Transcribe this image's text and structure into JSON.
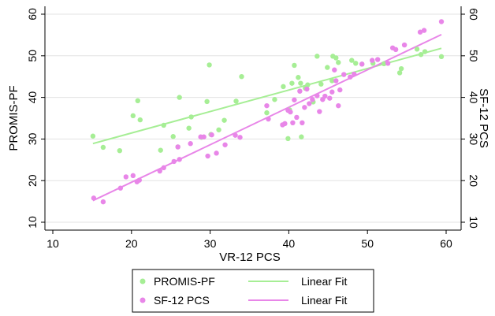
{
  "chart_data": {
    "type": "scatter",
    "title": "",
    "xlabel": "VR-12 PCS",
    "ylabel_left": "PROMIS-PF",
    "ylabel_right": "SF-12 PCS",
    "xlim": [
      10,
      60
    ],
    "ylim": [
      10,
      60
    ],
    "xticks": [
      10,
      20,
      30,
      40,
      50,
      60
    ],
    "yticks": [
      10,
      20,
      30,
      40,
      50,
      60
    ],
    "grid": true,
    "legend_position": "bottom",
    "series": [
      {
        "name": "PROMIS-PF",
        "color": "#a6ee95",
        "points": [
          [
            15.1,
            30.7
          ],
          [
            16.4,
            28.0
          ],
          [
            18.5,
            27.2
          ],
          [
            20.2,
            35.6
          ],
          [
            20.8,
            39.2
          ],
          [
            21.1,
            34.6
          ],
          [
            23.7,
            27.3
          ],
          [
            24.1,
            33.3
          ],
          [
            25.3,
            30.6
          ],
          [
            25.9,
            28.1
          ],
          [
            26.1,
            40.0
          ],
          [
            27.3,
            32.6
          ],
          [
            27.6,
            35.3
          ],
          [
            28.9,
            30.4
          ],
          [
            29.6,
            39.0
          ],
          [
            29.9,
            47.8
          ],
          [
            30.1,
            31.1
          ],
          [
            31.1,
            32.2
          ],
          [
            31.8,
            34.5
          ],
          [
            33.3,
            39.1
          ],
          [
            34.0,
            45.0
          ],
          [
            37.2,
            36.3
          ],
          [
            38.2,
            39.5
          ],
          [
            39.3,
            42.6
          ],
          [
            39.9,
            30.1
          ],
          [
            40.1,
            37.0
          ],
          [
            40.4,
            43.4
          ],
          [
            40.7,
            47.7
          ],
          [
            41.2,
            44.8
          ],
          [
            41.5,
            43.4
          ],
          [
            41.6,
            30.5
          ],
          [
            42.1,
            42.2
          ],
          [
            42.4,
            43.0
          ],
          [
            43.1,
            38.9
          ],
          [
            43.6,
            49.9
          ],
          [
            44.1,
            43.2
          ],
          [
            44.9,
            47.2
          ],
          [
            45.5,
            44.0
          ],
          [
            45.6,
            49.9
          ],
          [
            46.0,
            49.5
          ],
          [
            46.3,
            48.4
          ],
          [
            48.0,
            48.9
          ],
          [
            48.5,
            48.2
          ],
          [
            49.3,
            48.0
          ],
          [
            50.7,
            48.2
          ],
          [
            52.1,
            48.1
          ],
          [
            54.1,
            45.9
          ],
          [
            54.3,
            46.9
          ],
          [
            56.3,
            51.6
          ],
          [
            56.8,
            50.3
          ],
          [
            57.3,
            51.0
          ],
          [
            59.4,
            49.8
          ]
        ],
        "fit_line": [
          [
            15.1,
            28.9
          ],
          [
            59.4,
            51.8
          ]
        ]
      },
      {
        "name": "SF-12 PCS",
        "color": "#e886e8",
        "points": [
          [
            15.2,
            15.8
          ],
          [
            16.4,
            14.9
          ],
          [
            18.6,
            18.2
          ],
          [
            19.3,
            20.9
          ],
          [
            20.2,
            21.2
          ],
          [
            20.7,
            19.7
          ],
          [
            21.0,
            20.1
          ],
          [
            23.6,
            22.3
          ],
          [
            24.1,
            23.1
          ],
          [
            25.4,
            24.6
          ],
          [
            25.9,
            28.1
          ],
          [
            26.1,
            25.1
          ],
          [
            27.5,
            28.9
          ],
          [
            28.8,
            30.5
          ],
          [
            29.2,
            30.5
          ],
          [
            29.7,
            25.9
          ],
          [
            30.2,
            31.0
          ],
          [
            30.8,
            26.6
          ],
          [
            31.9,
            28.6
          ],
          [
            33.2,
            30.9
          ],
          [
            33.8,
            30.4
          ],
          [
            37.2,
            38.0
          ],
          [
            37.4,
            34.8
          ],
          [
            39.2,
            33.4
          ],
          [
            39.5,
            33.7
          ],
          [
            39.9,
            36.9
          ],
          [
            40.2,
            36.5
          ],
          [
            40.5,
            33.9
          ],
          [
            40.7,
            39.4
          ],
          [
            41.0,
            35.2
          ],
          [
            41.4,
            41.5
          ],
          [
            41.7,
            33.9
          ],
          [
            42.0,
            37.6
          ],
          [
            42.3,
            42.0
          ],
          [
            42.6,
            38.5
          ],
          [
            43.0,
            39.5
          ],
          [
            43.6,
            40.4
          ],
          [
            43.9,
            36.6
          ],
          [
            44.3,
            39.5
          ],
          [
            44.6,
            40.3
          ],
          [
            45.2,
            39.8
          ],
          [
            45.5,
            41.3
          ],
          [
            45.8,
            46.6
          ],
          [
            46.0,
            44.0
          ],
          [
            46.3,
            38.0
          ],
          [
            46.5,
            41.8
          ],
          [
            47.0,
            45.5
          ],
          [
            47.8,
            44.9
          ],
          [
            48.3,
            45.6
          ],
          [
            49.3,
            48.0
          ],
          [
            50.6,
            48.9
          ],
          [
            51.3,
            49.1
          ],
          [
            52.6,
            48.2
          ],
          [
            53.2,
            51.9
          ],
          [
            53.6,
            51.5
          ],
          [
            54.7,
            52.6
          ],
          [
            56.7,
            55.7
          ],
          [
            57.2,
            56.1
          ],
          [
            59.4,
            58.2
          ]
        ],
        "fit_line": [
          [
            15.1,
            15.2
          ],
          [
            59.4,
            55.1
          ]
        ]
      }
    ],
    "legend": [
      {
        "label": "PROMIS-PF",
        "kind": "marker",
        "color": "#a6ee95"
      },
      {
        "label": "Linear Fit",
        "kind": "line",
        "color": "#a6ee95"
      },
      {
        "label": "SF-12 PCS",
        "kind": "marker",
        "color": "#e886e8"
      },
      {
        "label": "Linear Fit",
        "kind": "line",
        "color": "#e886e8"
      }
    ]
  }
}
